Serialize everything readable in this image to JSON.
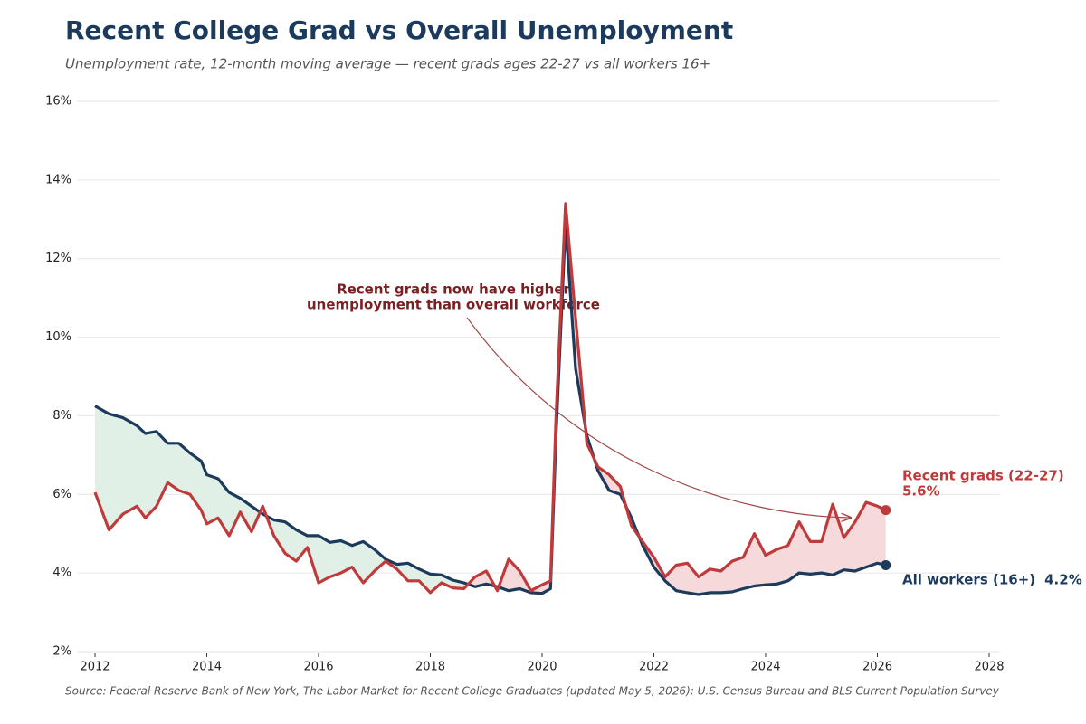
{
  "chart_data": {
    "type": "line",
    "title": "Recent College Grad vs Overall Unemployment",
    "subtitle": "Unemployment rate, 12-month moving average — recent grads ages 22-27 vs all workers 16+",
    "source": "Source: Federal Reserve Bank of New York, The Labor Market for Recent College Graduates (updated May 5, 2026); U.S. Census Bureau and BLS Current Population Survey",
    "annotation": [
      "Recent grads now have higher",
      "unemployment than overall workforce"
    ],
    "x": [
      2012.0,
      2012.25,
      2012.5,
      2012.75,
      2012.9,
      2013.1,
      2013.3,
      2013.5,
      2013.7,
      2013.9,
      2014.0,
      2014.2,
      2014.4,
      2014.6,
      2014.8,
      2015.0,
      2015.2,
      2015.4,
      2015.6,
      2015.8,
      2016.0,
      2016.2,
      2016.4,
      2016.6,
      2016.8,
      2017.0,
      2017.2,
      2017.4,
      2017.6,
      2017.8,
      2018.0,
      2018.2,
      2018.4,
      2018.6,
      2018.8,
      2019.0,
      2019.2,
      2019.4,
      2019.6,
      2019.8,
      2020.0,
      2020.15,
      2020.25,
      2020.42,
      2020.6,
      2020.8,
      2021.0,
      2021.2,
      2021.4,
      2021.6,
      2021.8,
      2022.0,
      2022.2,
      2022.4,
      2022.6,
      2022.8,
      2023.0,
      2023.2,
      2023.4,
      2023.6,
      2023.8,
      2024.0,
      2024.2,
      2024.4,
      2024.6,
      2024.8,
      2025.0,
      2025.2,
      2025.4,
      2025.6,
      2025.8,
      2026.0,
      2026.15
    ],
    "series": [
      {
        "name": "Recent grads (22-27)",
        "color": "#c0393b",
        "end_label": "5.6%",
        "values": [
          6.05,
          5.1,
          5.5,
          5.7,
          5.4,
          5.7,
          6.3,
          6.1,
          6.0,
          5.6,
          5.25,
          5.4,
          4.95,
          5.55,
          5.05,
          5.7,
          4.95,
          4.5,
          4.3,
          4.65,
          3.75,
          3.9,
          4.0,
          4.15,
          3.75,
          4.05,
          4.3,
          4.1,
          3.8,
          3.8,
          3.5,
          3.75,
          3.62,
          3.6,
          3.9,
          4.05,
          3.55,
          4.35,
          4.05,
          3.55,
          3.7,
          3.8,
          8.0,
          13.4,
          10.5,
          7.3,
          6.7,
          6.5,
          6.2,
          5.2,
          4.8,
          4.4,
          3.9,
          4.2,
          4.25,
          3.9,
          4.1,
          4.05,
          4.3,
          4.4,
          5.0,
          4.45,
          4.6,
          4.7,
          5.3,
          4.8,
          4.8,
          5.75,
          4.9,
          5.3,
          5.8,
          5.7,
          5.6
        ]
      },
      {
        "name": "All workers (16+)",
        "color": "#1b3a5c",
        "end_label": "4.2%",
        "values": [
          8.25,
          8.05,
          7.95,
          7.75,
          7.55,
          7.6,
          7.3,
          7.3,
          7.05,
          6.85,
          6.5,
          6.4,
          6.05,
          5.9,
          5.7,
          5.5,
          5.35,
          5.3,
          5.1,
          4.95,
          4.95,
          4.78,
          4.82,
          4.7,
          4.8,
          4.6,
          4.35,
          4.22,
          4.25,
          4.1,
          3.97,
          3.95,
          3.82,
          3.75,
          3.65,
          3.72,
          3.65,
          3.55,
          3.6,
          3.5,
          3.48,
          3.6,
          7.5,
          12.9,
          9.2,
          7.5,
          6.6,
          6.1,
          6.0,
          5.4,
          4.7,
          4.15,
          3.8,
          3.55,
          3.5,
          3.45,
          3.5,
          3.5,
          3.52,
          3.6,
          3.67,
          3.7,
          3.72,
          3.8,
          4.0,
          3.97,
          4.0,
          3.95,
          4.08,
          4.05,
          4.15,
          4.25,
          4.2
        ]
      }
    ],
    "xlim": [
      2012,
      2028
    ],
    "xticks": [
      2012,
      2014,
      2016,
      2018,
      2020,
      2022,
      2024,
      2026,
      2028
    ],
    "ylim": [
      2,
      16
    ],
    "yticks": [
      {
        "value": 2,
        "label": "2%"
      },
      {
        "value": 4,
        "label": "4%"
      },
      {
        "value": 6,
        "label": "6%"
      },
      {
        "value": 8,
        "label": "8%"
      },
      {
        "value": 10,
        "label": "10%"
      },
      {
        "value": 12,
        "label": "12%"
      },
      {
        "value": 14,
        "label": "14%"
      },
      {
        "value": 16,
        "label": "16%"
      }
    ],
    "grid": true
  }
}
